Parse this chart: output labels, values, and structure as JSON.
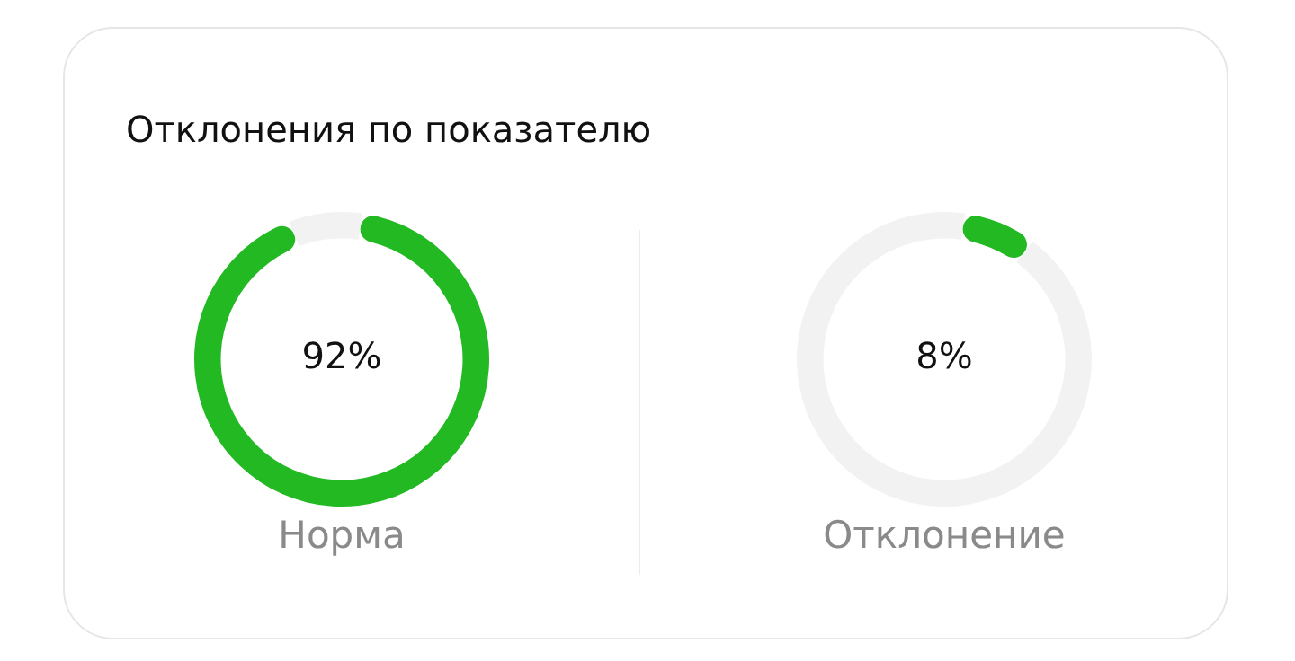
{
  "chart_data": [
    {
      "type": "donut",
      "title": "Отклонения по показателю",
      "xlabel": "Норма",
      "categories": [
        null,
        null
      ],
      "values": [
        92,
        8
      ],
      "colors": [
        "#22b922",
        "#f2f2f2"
      ],
      "value_labels": [
        "92%",
        null
      ],
      "legend": false
    },
    {
      "type": "donut",
      "xlabel": "Отклонение",
      "categories": [
        null,
        null
      ],
      "values": [
        8,
        92
      ],
      "colors": [
        "#22b922",
        "#f2f2f2"
      ],
      "value_labels": [
        "8%",
        null
      ],
      "legend": false
    }
  ]
}
